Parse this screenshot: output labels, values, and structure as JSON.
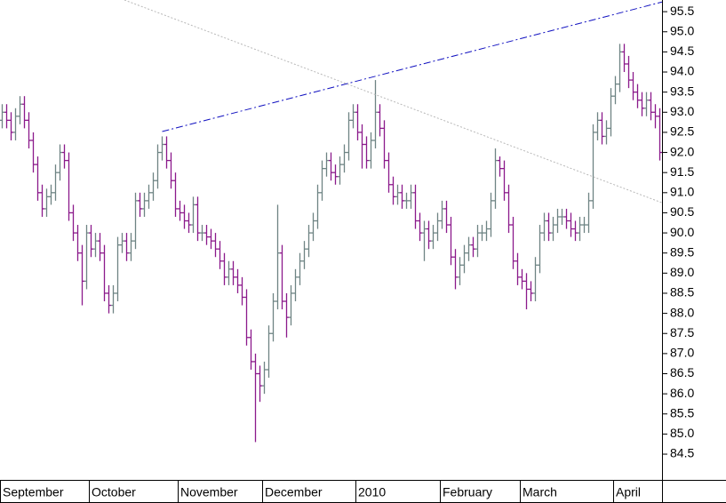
{
  "chart_data": {
    "type": "ohlc",
    "up_color": "#6e8484",
    "down_color": "#8b1a8b",
    "categories": [
      "September",
      null,
      null,
      null,
      null,
      null,
      null,
      null,
      null,
      null,
      null,
      null,
      null,
      null,
      null,
      null,
      null,
      null,
      null,
      null,
      "October",
      null,
      null,
      null,
      null,
      null,
      null,
      null,
      null,
      null,
      null,
      null,
      null,
      null,
      null,
      null,
      null,
      null,
      null,
      null,
      "November",
      null,
      null,
      null,
      null,
      null,
      null,
      null,
      null,
      null,
      null,
      null,
      null,
      null,
      null,
      null,
      null,
      null,
      null,
      "December",
      null,
      null,
      null,
      null,
      null,
      null,
      null,
      null,
      null,
      null,
      null,
      null,
      null,
      null,
      null,
      null,
      null,
      null,
      null,
      null,
      "2010",
      null,
      null,
      null,
      null,
      null,
      null,
      null,
      null,
      null,
      null,
      null,
      null,
      null,
      null,
      null,
      null,
      null,
      null,
      "February",
      null,
      null,
      null,
      null,
      null,
      null,
      null,
      null,
      null,
      null,
      null,
      null,
      null,
      null,
      null,
      null,
      null,
      "March",
      null,
      null,
      null,
      null,
      null,
      null,
      null,
      null,
      null,
      null,
      null,
      null,
      null,
      null,
      null,
      null,
      null,
      null,
      null,
      null,
      "April",
      null,
      null,
      null,
      null,
      null,
      null,
      null,
      null,
      null,
      null
    ],
    "open": [
      92.8,
      93.0,
      92.8,
      92.5,
      92.9,
      93.2,
      92.8,
      92.3,
      91.7,
      91.0,
      90.6,
      90.9,
      91.0,
      91.5,
      92.0,
      91.8,
      90.5,
      90.0,
      89.5,
      88.8,
      90.0,
      89.6,
      89.8,
      89.5,
      88.5,
      88.2,
      88.5,
      89.7,
      89.8,
      89.5,
      89.8,
      90.8,
      90.6,
      90.8,
      91.0,
      91.3,
      92.0,
      92.2,
      91.8,
      91.3,
      90.6,
      90.5,
      90.3,
      90.2,
      90.7,
      90.0,
      90.0,
      89.9,
      89.8,
      89.6,
      89.3,
      88.9,
      89.1,
      88.9,
      88.7,
      88.4,
      87.4,
      86.8,
      86.5,
      86.2,
      86.6,
      87.5,
      88.3,
      89.5,
      88.3,
      87.9,
      88.5,
      88.9,
      89.3,
      89.6,
      90.0,
      90.3,
      91.0,
      91.6,
      91.8,
      91.5,
      91.4,
      91.7,
      92.0,
      92.8,
      93.0,
      92.5,
      92.2,
      91.8,
      92.3,
      93.0,
      92.6,
      91.8,
      91.2,
      90.9,
      91.0,
      90.8,
      90.8,
      91.0,
      90.3,
      90.0,
      90.1,
      89.8,
      90.0,
      90.3,
      90.6,
      90.2,
      89.4,
      88.9,
      89.2,
      89.5,
      89.7,
      89.6,
      90.0,
      90.0,
      90.1,
      90.8,
      91.8,
      91.6,
      91.0,
      90.2,
      89.3,
      88.9,
      88.8,
      88.6,
      88.5,
      89.2,
      90.0,
      90.3,
      90.0,
      90.2,
      90.4,
      90.4,
      90.3,
      90.1,
      90.0,
      90.2,
      90.2,
      90.8,
      92.5,
      92.8,
      92.4,
      92.6,
      93.4,
      93.7,
      94.5,
      94.2,
      93.8,
      93.5,
      93.3,
      93.1,
      93.3,
      93.0,
      92.9
    ],
    "high": [
      93.2,
      93.2,
      93.0,
      93.1,
      93.4,
      93.4,
      93.0,
      92.5,
      91.9,
      91.2,
      91.1,
      91.2,
      91.7,
      92.2,
      92.2,
      92.0,
      90.7,
      90.2,
      89.7,
      90.2,
      90.2,
      90.0,
      90.0,
      89.7,
      88.7,
      88.7,
      89.9,
      90.0,
      90.0,
      90.0,
      91.0,
      91.0,
      91.0,
      91.2,
      91.5,
      92.2,
      92.4,
      92.4,
      92.0,
      91.5,
      90.8,
      90.7,
      90.5,
      90.9,
      90.9,
      90.2,
      90.2,
      90.1,
      90.0,
      89.8,
      89.5,
      89.3,
      89.3,
      89.1,
      88.9,
      88.6,
      87.6,
      87.0,
      86.7,
      86.8,
      87.7,
      88.5,
      90.7,
      89.7,
      88.5,
      88.7,
      89.1,
      89.5,
      89.8,
      90.2,
      90.5,
      91.2,
      91.8,
      92.0,
      92.0,
      91.7,
      91.9,
      92.2,
      93.0,
      93.2,
      93.2,
      92.7,
      92.4,
      92.5,
      93.8,
      93.2,
      92.8,
      92.0,
      91.4,
      91.2,
      91.2,
      91.0,
      91.2,
      91.2,
      90.5,
      90.3,
      90.3,
      90.2,
      90.5,
      90.8,
      90.8,
      90.4,
      89.6,
      89.4,
      89.7,
      89.9,
      89.9,
      90.2,
      90.2,
      90.3,
      91.0,
      92.1,
      91.9,
      91.8,
      91.2,
      90.4,
      89.5,
      89.1,
      89.0,
      88.8,
      89.4,
      90.2,
      90.5,
      90.5,
      90.4,
      90.6,
      90.6,
      90.6,
      90.5,
      90.3,
      90.4,
      90.4,
      91.0,
      92.7,
      93.0,
      93.0,
      92.8,
      93.6,
      93.9,
      94.7,
      94.7,
      94.4,
      94.0,
      93.7,
      93.5,
      93.5,
      93.5,
      93.2,
      93.1
    ],
    "low": [
      92.6,
      92.6,
      92.3,
      92.3,
      92.7,
      92.6,
      92.1,
      91.5,
      90.8,
      90.4,
      90.4,
      90.7,
      90.8,
      91.3,
      91.6,
      90.3,
      89.8,
      89.3,
      88.2,
      88.6,
      89.4,
      89.4,
      89.3,
      88.3,
      88.0,
      88.0,
      88.3,
      89.5,
      89.3,
      89.3,
      89.6,
      90.4,
      90.4,
      90.6,
      90.8,
      91.1,
      91.8,
      91.6,
      91.1,
      90.4,
      90.3,
      90.1,
      90.0,
      90.0,
      89.8,
      89.8,
      89.7,
      89.6,
      89.4,
      89.1,
      88.7,
      88.7,
      88.7,
      88.5,
      88.2,
      87.2,
      86.6,
      84.8,
      85.8,
      86.0,
      86.4,
      87.3,
      88.1,
      88.1,
      87.4,
      87.7,
      88.3,
      88.7,
      89.1,
      89.4,
      89.8,
      90.1,
      90.8,
      91.4,
      91.3,
      91.2,
      91.2,
      91.5,
      91.8,
      92.6,
      92.3,
      91.6,
      91.6,
      91.6,
      92.1,
      92.4,
      91.6,
      91.0,
      90.7,
      90.7,
      90.6,
      90.6,
      90.6,
      90.1,
      89.8,
      89.3,
      89.6,
      89.6,
      89.8,
      90.1,
      90.0,
      89.2,
      88.6,
      88.7,
      89.0,
      89.3,
      89.4,
      89.4,
      89.8,
      89.8,
      89.9,
      90.6,
      91.4,
      90.8,
      90.0,
      89.1,
      88.7,
      88.6,
      88.1,
      88.3,
      88.3,
      89.0,
      89.8,
      89.8,
      89.8,
      90.0,
      90.2,
      90.1,
      89.9,
      89.8,
      89.8,
      90.0,
      90.0,
      90.6,
      92.3,
      92.2,
      92.2,
      92.4,
      93.2,
      93.5,
      94.0,
      93.6,
      93.3,
      93.1,
      92.9,
      92.9,
      92.8,
      92.6,
      91.8
    ],
    "close": [
      93.0,
      92.8,
      92.5,
      92.9,
      93.2,
      92.8,
      92.3,
      91.7,
      91.0,
      90.6,
      90.9,
      91.0,
      91.5,
      92.0,
      91.8,
      90.5,
      90.0,
      89.5,
      88.8,
      90.0,
      89.6,
      89.8,
      89.5,
      88.5,
      88.2,
      88.5,
      89.7,
      89.8,
      89.5,
      89.8,
      90.8,
      90.6,
      90.8,
      91.0,
      91.3,
      92.0,
      92.2,
      91.8,
      91.3,
      90.6,
      90.5,
      90.3,
      90.2,
      90.7,
      90.0,
      90.0,
      89.9,
      89.8,
      89.6,
      89.3,
      88.9,
      89.1,
      88.9,
      88.7,
      88.4,
      87.4,
      86.8,
      86.5,
      86.2,
      86.6,
      87.5,
      88.3,
      89.5,
      88.3,
      87.9,
      88.5,
      88.9,
      89.3,
      89.6,
      90.0,
      90.3,
      91.0,
      91.6,
      91.8,
      91.5,
      91.4,
      91.7,
      92.0,
      92.8,
      93.0,
      92.5,
      92.2,
      91.8,
      92.3,
      93.0,
      92.6,
      91.8,
      91.2,
      90.9,
      91.0,
      90.8,
      90.8,
      91.0,
      90.3,
      90.0,
      90.1,
      89.8,
      90.0,
      90.3,
      90.6,
      90.2,
      89.4,
      88.9,
      89.2,
      89.5,
      89.7,
      89.6,
      90.0,
      90.0,
      90.1,
      90.8,
      91.8,
      91.6,
      91.0,
      90.2,
      89.3,
      88.9,
      88.8,
      88.6,
      88.5,
      89.2,
      90.0,
      90.3,
      90.0,
      90.2,
      90.4,
      90.4,
      90.3,
      90.1,
      90.0,
      90.2,
      90.2,
      90.8,
      92.5,
      92.8,
      92.4,
      92.6,
      93.4,
      93.7,
      94.5,
      94.2,
      93.8,
      93.5,
      93.3,
      93.1,
      93.3,
      93.0,
      92.9,
      92.0
    ],
    "ylim": [
      83.86,
      95.79
    ],
    "yticks": [
      84.5,
      {
        "value": 85,
        "label": "85.0"
      },
      85.5,
      {
        "value": 86,
        "label": "86.0"
      },
      86.5,
      {
        "value": 87,
        "label": "87.0"
      },
      87.5,
      {
        "value": 88,
        "label": "88.0"
      },
      88.5,
      {
        "value": 89,
        "label": "89.0"
      },
      89.5,
      {
        "value": 90,
        "label": "90.0"
      },
      90.5,
      {
        "value": 91,
        "label": "91.0"
      },
      91.5,
      {
        "value": 92,
        "label": "92.0"
      },
      92.5,
      {
        "value": 93,
        "label": "93.0"
      },
      93.5,
      {
        "value": 94,
        "label": "94.0"
      },
      94.5,
      {
        "value": 95,
        "label": "95.0"
      },
      95.5
    ],
    "trendlines": [
      {
        "x": [
          36,
          148.5
        ],
        "y": [
          92.52,
          95.74
        ],
        "color": "#1010c0",
        "dash": "8 3 2 3"
      },
      {
        "x": [
          27.5,
          148.5
        ],
        "y": [
          95.79,
          90.75
        ],
        "color": "#b8b8b8",
        "dash": "2 2"
      }
    ]
  }
}
